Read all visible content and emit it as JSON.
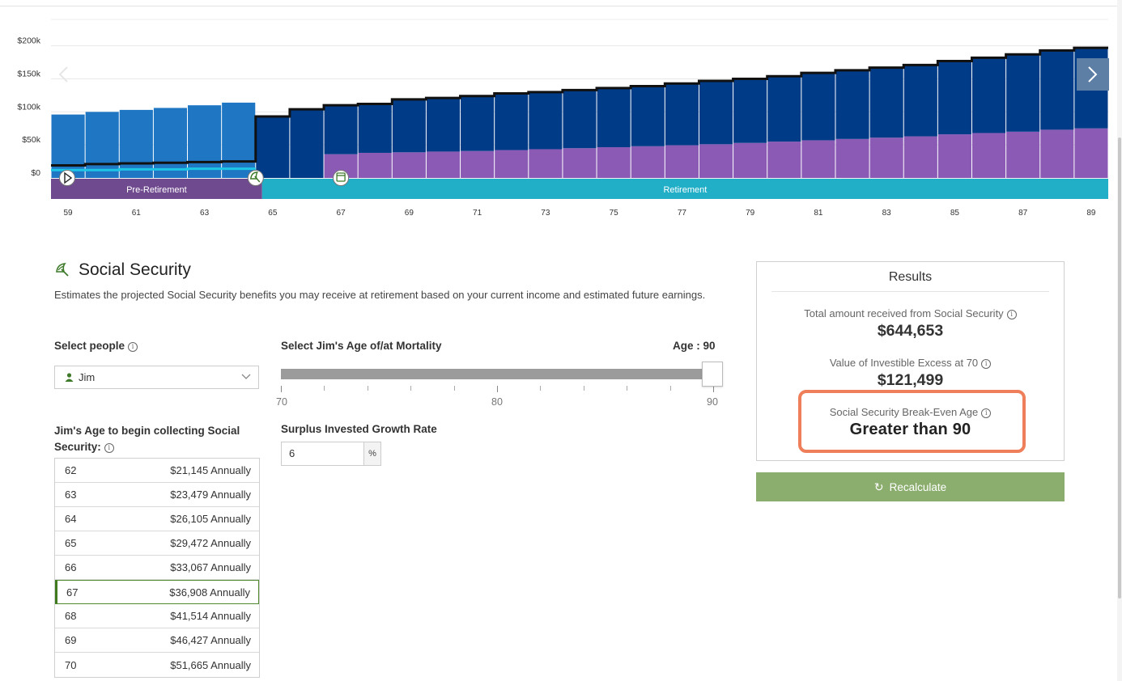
{
  "chart_data": {
    "type": "bar",
    "title": "",
    "xlabel": "",
    "ylabel": "",
    "ylim": [
      0,
      240000
    ],
    "y_ticks": [
      "$0",
      "$50k",
      "$100k",
      "$150k",
      "$200k"
    ],
    "y_tick_values": [
      0,
      50000,
      100000,
      150000,
      200000
    ],
    "x": [
      59,
      60,
      61,
      62,
      63,
      64,
      65,
      66,
      67,
      68,
      69,
      70,
      71,
      72,
      73,
      74,
      75,
      76,
      77,
      78,
      79,
      80,
      81,
      82,
      83,
      84,
      85,
      86,
      87,
      88,
      89
    ],
    "x_tick_labels": [
      "59",
      "61",
      "63",
      "65",
      "67",
      "69",
      "71",
      "73",
      "75",
      "77",
      "79",
      "81",
      "83",
      "85",
      "87",
      "89"
    ],
    "series": [
      {
        "values": [
          96000,
          100000,
          103000,
          106000,
          110000,
          114000,
          0,
          0,
          0,
          0,
          0,
          0,
          0,
          0,
          0,
          0,
          0,
          0,
          0,
          0,
          0,
          0,
          0,
          0,
          0,
          0,
          0,
          0,
          0,
          0,
          0
        ],
        "color": "#1f77c4"
      },
      {
        "values": [
          0,
          0,
          0,
          0,
          0,
          0,
          93000,
          104000,
          74000,
          74000,
          80000,
          81000,
          83000,
          86000,
          86000,
          88000,
          90000,
          91000,
          93000,
          96000,
          97000,
          99000,
          102000,
          104000,
          106000,
          108000,
          111000,
          114000,
          117000,
          120000,
          122000
        ],
        "color": "#003b87"
      },
      {
        "values": [
          0,
          0,
          0,
          0,
          0,
          0,
          0,
          0,
          36000,
          38000,
          38800,
          39900,
          40800,
          42200,
          43500,
          45000,
          46500,
          48000,
          49500,
          51000,
          53000,
          55000,
          57000,
          59000,
          61000,
          63000,
          66000,
          68000,
          70000,
          73000,
          75000
        ],
        "color": "#8b5ab5"
      }
    ],
    "outline_values": [
      19000,
      21000,
      22000,
      23000,
      24000,
      25000,
      93000,
      104000,
      110000,
      112000,
      119000,
      121000,
      124000,
      128000,
      130000,
      133000,
      136000,
      139000,
      143000,
      147000,
      150000,
      154000,
      159000,
      163000,
      167000,
      171000,
      177000,
      182000,
      187000,
      193000,
      197000
    ],
    "line_values": [
      12000,
      12000,
      13000,
      13000,
      14000,
      14000
    ],
    "phases": [
      {
        "label": "Pre-Retirement",
        "color": "#6f4a8e",
        "from_age": 59,
        "to_age": 65
      },
      {
        "label": "Retirement",
        "color": "#21aec7",
        "from_age": 65,
        "to_age": 90
      }
    ],
    "grid": true
  },
  "chart_nav": {
    "prev_icon": "chevron-left-icon",
    "next_icon": "chevron-right-icon"
  },
  "social_security": {
    "title": "Social Security",
    "description": "Estimates the projected Social Security benefits you may receive at retirement based on your current income and estimated future earnings."
  },
  "select_people": {
    "label": "Select people",
    "value": "Jim"
  },
  "collect_age": {
    "label": "Jim's Age to begin collecting Social Security:",
    "rows": [
      {
        "age": "62",
        "amount": "$21,145 Annually",
        "selected": false
      },
      {
        "age": "63",
        "amount": "$23,479 Annually",
        "selected": false
      },
      {
        "age": "64",
        "amount": "$26,105 Annually",
        "selected": false
      },
      {
        "age": "65",
        "amount": "$29,472 Annually",
        "selected": false
      },
      {
        "age": "66",
        "amount": "$33,067 Annually",
        "selected": false
      },
      {
        "age": "67",
        "amount": "$36,908 Annually",
        "selected": true
      },
      {
        "age": "68",
        "amount": "$41,514 Annually",
        "selected": false
      },
      {
        "age": "69",
        "amount": "$46,427 Annually",
        "selected": false
      },
      {
        "age": "70",
        "amount": "$51,665 Annually",
        "selected": false
      }
    ]
  },
  "mortality": {
    "label": "Select Jim's Age of/at Mortality",
    "age_display": "Age : 90",
    "min": 70,
    "max": 90,
    "value": 90,
    "labels": [
      "70",
      "80",
      "90"
    ]
  },
  "growth_rate": {
    "label": "Surplus Invested Growth Rate",
    "value": "6",
    "suffix": "%"
  },
  "results": {
    "title": "Results",
    "total_label": "Total amount received from Social Security",
    "total_value": "$644,653",
    "excess_label": "Value of Investible Excess at 70",
    "excess_value": "$121,499",
    "breakeven_label": "Social Security Break-Even Age",
    "breakeven_value": "Greater than 90"
  },
  "recalculate": {
    "label": "Recalculate"
  },
  "colors": {
    "accent_green": "#8bae6f",
    "highlight": "#ee7f5a",
    "pre_retirement": "#6f4a8e",
    "retirement": "#21aec7"
  }
}
